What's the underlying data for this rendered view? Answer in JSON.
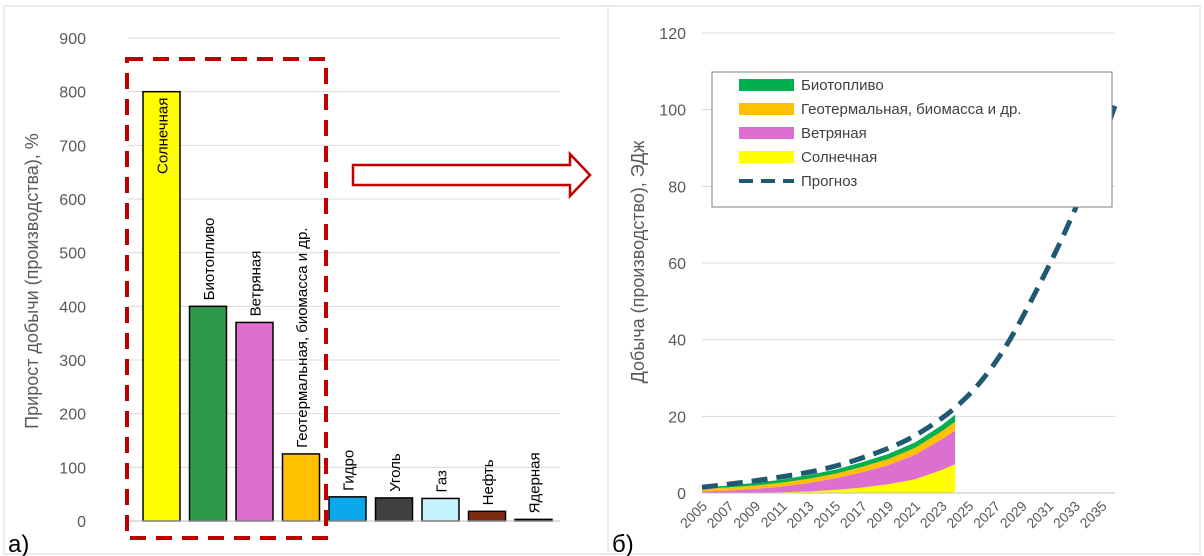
{
  "panels": {
    "left_letter": "а)",
    "right_letter": "б)"
  },
  "colors": {
    "highlight_box": "#c00000",
    "forecast": "#1f5a72",
    "bar_outline": "#000000",
    "grid": "#d9d9d9"
  },
  "chart_data": [
    {
      "type": "bar",
      "ylabel": "Прирост добычи (производства), %",
      "ylim": [
        0,
        900
      ],
      "yticks": [
        0,
        100,
        200,
        300,
        400,
        500,
        600,
        700,
        800,
        900
      ],
      "grid": true,
      "categories": [
        "Солнечная",
        "Биотопливо",
        "Ветряная",
        "Геотермальная, биомасса и др.",
        "Гидро",
        "Уголь",
        "Газ",
        "Нефть",
        "Ядерная"
      ],
      "values": [
        800,
        400,
        370,
        125,
        45,
        43,
        42,
        18,
        3
      ],
      "bar_colors": [
        "#ffff00",
        "#2e9a49",
        "#dd6fd1",
        "#ffc000",
        "#0aa7ec",
        "#404040",
        "#c5f3fb",
        "#7b2c10",
        "#000000"
      ],
      "highlight": "dashed box around first four bars with arrow pointing to right chart"
    },
    {
      "type": "area",
      "ylabel": "Добыча (производство), ЭДж",
      "ylim": [
        0,
        120
      ],
      "yticks": [
        0,
        20,
        40,
        60,
        80,
        100,
        120
      ],
      "xlim": [
        2005,
        2036
      ],
      "xticks": [
        "2005",
        "2007",
        "2009",
        "2011",
        "2013",
        "2015",
        "2017",
        "2019",
        "2021",
        "2023",
        "2025",
        "2027",
        "2029",
        "2031",
        "2033",
        "2035"
      ],
      "grid": true,
      "legend_position": "top-left",
      "x": [
        2005,
        2007,
        2009,
        2011,
        2013,
        2015,
        2017,
        2019,
        2021,
        2023,
        2024
      ],
      "series": [
        {
          "name": "Солнечная",
          "color": "#ffff00",
          "values": [
            0.0,
            0.01,
            0.05,
            0.2,
            0.4,
            0.8,
            1.4,
            2.3,
            3.6,
            6.0,
            7.5
          ]
        },
        {
          "name": "Ветряная",
          "color": "#dd6fd1",
          "values": [
            0.4,
            0.65,
            1.0,
            1.5,
            2.2,
            3.0,
            4.0,
            5.0,
            6.4,
            8.0,
            8.8
          ]
        },
        {
          "name": "Геотермальная, биомасса и др.",
          "color": "#ffc000",
          "values": [
            0.7,
            0.8,
            0.9,
            1.0,
            1.1,
            1.2,
            1.4,
            1.6,
            1.8,
            2.1,
            2.3
          ]
        },
        {
          "name": "Биотопливо",
          "color": "#00b050",
          "values": [
            0.3,
            0.5,
            0.7,
            0.8,
            1.0,
            1.1,
            1.2,
            1.3,
            1.4,
            1.6,
            1.8
          ]
        }
      ],
      "forecast": {
        "name": "Прогноз",
        "x": [
          2005,
          2008,
          2011,
          2014,
          2017,
          2020,
          2022,
          2024,
          2026,
          2028,
          2030,
          2032,
          2034,
          2036
        ],
        "values": [
          1.5,
          2.7,
          4.2,
          6.0,
          9.0,
          13.0,
          17.0,
          22.0,
          29.0,
          39.0,
          52.0,
          66.0,
          82.0,
          101.0
        ]
      }
    }
  ]
}
